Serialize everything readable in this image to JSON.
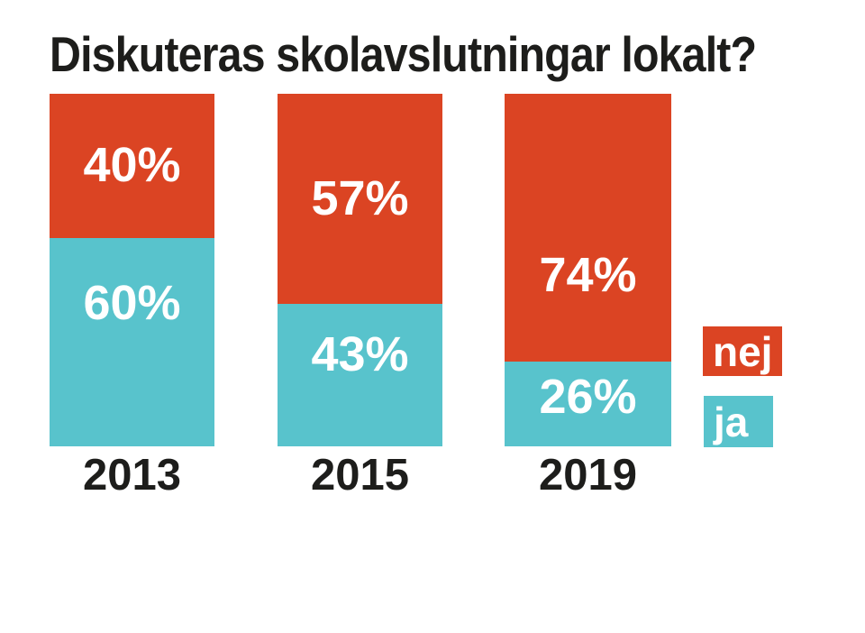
{
  "page": {
    "background": "#ffffff",
    "text_color": "#1d1d1b"
  },
  "chart_data": {
    "type": "bar",
    "subtype": "stacked-column",
    "title": "Diskuteras skolavslutningar lokalt?",
    "categories": [
      "2013",
      "2015",
      "2019"
    ],
    "series": [
      {
        "name": "nej",
        "color": "#db4423",
        "values": [
          40,
          57,
          74
        ],
        "labels": [
          "40%",
          "57%",
          "74%"
        ]
      },
      {
        "name": "ja",
        "color": "#58c3cc",
        "values": [
          60,
          43,
          26
        ],
        "labels": [
          "60%",
          "43%",
          "26%"
        ]
      }
    ],
    "value_unit": "%",
    "ylim": [
      0,
      100
    ],
    "grid": false,
    "axes_visible": false,
    "value_label_color": "#ffffff",
    "legend": {
      "position": "right",
      "items": [
        {
          "label": "nej",
          "color": "#db4423",
          "text_color": "#ffffff"
        },
        {
          "label": "ja",
          "color": "#58c3cc",
          "text_color": "#ffffff"
        }
      ]
    }
  }
}
